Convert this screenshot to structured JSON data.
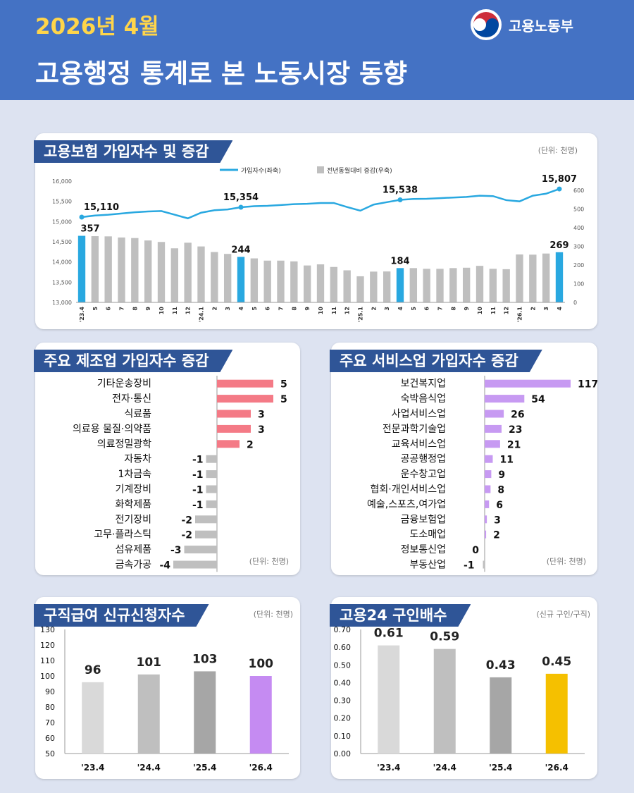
{
  "header": {
    "date": "2026년 4월",
    "title": "고용행정 통계로 본 노동시장 동향",
    "ministry": "고용노동부"
  },
  "colors": {
    "header_bg": "#4472c4",
    "accent_line": "#29a8e0",
    "bar_gray": "#bfbfbf",
    "manufacturing_pos": "#f47a86",
    "service_pos": "#c79af2",
    "highlight_purple": "#c58bf2",
    "highlight_yellow": "#f5c000"
  },
  "insurance_panel": {
    "title": "고용보험 가입자수 및 증감",
    "unit": "(단위: 천명)"
  },
  "manufacturing_panel": {
    "title": "주요 제조업 가입자수 증감",
    "unit": "(단위: 천명)"
  },
  "service_panel": {
    "title": "주요 서비스업 가입자수 증감",
    "unit": "(단위: 천명)"
  },
  "jobseeker_panel": {
    "title": "구직급여 신규신청자수",
    "unit": "(단위: 천명)"
  },
  "openings_panel": {
    "title": "고용24 구인배수",
    "unit": "(신규 구인/구직)"
  },
  "chart_data": [
    {
      "type": "line",
      "title": "고용보험 가입자수 및 증감",
      "categories": [
        "'23.4",
        "5",
        "6",
        "7",
        "8",
        "9",
        "10",
        "11",
        "12",
        "'24.1",
        "2",
        "3",
        "4",
        "5",
        "6",
        "7",
        "8",
        "9",
        "10",
        "11",
        "12",
        "'25.1",
        "2",
        "3",
        "4",
        "5",
        "6",
        "7",
        "8",
        "9",
        "10",
        "11",
        "12",
        "'26.1",
        "2",
        "3",
        "4"
      ],
      "series": [
        {
          "name": "가입자수(좌축)",
          "type": "line",
          "axis": "left",
          "values": [
            15110,
            15150,
            15170,
            15200,
            15230,
            15250,
            15260,
            15170,
            15080,
            15220,
            15280,
            15300,
            15354,
            15380,
            15390,
            15410,
            15430,
            15440,
            15460,
            15460,
            15360,
            15270,
            15420,
            15480,
            15538,
            15560,
            15565,
            15580,
            15595,
            15610,
            15640,
            15630,
            15530,
            15500,
            15640,
            15690,
            15807
          ],
          "labels": {
            "0": "15,110",
            "12": "15,354",
            "24": "15,538",
            "36": "15,807"
          }
        },
        {
          "name": "전년동월대비 증감(우축)",
          "type": "bar",
          "axis": "right",
          "values": [
            357,
            355,
            354,
            348,
            345,
            332,
            324,
            290,
            320,
            300,
            270,
            260,
            244,
            236,
            224,
            224,
            220,
            198,
            204,
            190,
            172,
            140,
            165,
            166,
            184,
            184,
            180,
            180,
            184,
            186,
            196,
            180,
            178,
            257,
            256,
            262,
            269
          ],
          "labels": {
            "0": "357",
            "12": "244",
            "24": "184",
            "36": "269"
          },
          "highlight": [
            0,
            12,
            24,
            36
          ]
        }
      ],
      "y_left": {
        "min": 13000,
        "max": 16000,
        "ticks": [
          "13,000",
          "13,500",
          "14,000",
          "14,500",
          "15,000",
          "15,500",
          "16,000"
        ]
      },
      "y_right": {
        "min": 0,
        "max": 650,
        "ticks": [
          "0",
          "100",
          "200",
          "300",
          "400",
          "500",
          "600"
        ]
      },
      "legend_position": "top"
    },
    {
      "type": "bar",
      "orientation": "horizontal",
      "title": "주요 제조업 가입자수 증감",
      "categories": [
        "기타운송장비",
        "전자·통신",
        "식료품",
        "의료용 물질·의약품",
        "의료정밀광학",
        "자동차",
        "1차금속",
        "기계장비",
        "화학제품",
        "전기장비",
        "고무·플라스틱",
        "섬유제품",
        "금속가공"
      ],
      "values": [
        5,
        5,
        3,
        3,
        2,
        -1,
        -1,
        -1,
        -1,
        -2,
        -2,
        -3,
        -4
      ],
      "labels": [
        "5",
        "5",
        "3",
        "3",
        "2",
        "-1",
        "-1",
        "-1",
        "-1",
        "-2",
        "-2",
        "-3",
        "-4"
      ]
    },
    {
      "type": "bar",
      "orientation": "horizontal",
      "title": "주요 서비스업 가입자수 증감",
      "categories": [
        "보건복지업",
        "숙박음식업",
        "사업서비스업",
        "전문과학기술업",
        "교육서비스업",
        "공공행정업",
        "운수창고업",
        "협회·개인서비스업",
        "예술,스포츠,여가업",
        "금융보험업",
        "도소매업",
        "정보통신업",
        "부동산업"
      ],
      "values": [
        117,
        54,
        26,
        23,
        21,
        11,
        9,
        8,
        6,
        3,
        2,
        0,
        -1
      ],
      "labels": [
        "117",
        "54",
        "26",
        "23",
        "21",
        "11",
        "9",
        "8",
        "6",
        "3",
        "2",
        "0",
        "-1"
      ]
    },
    {
      "type": "bar",
      "title": "구직급여 신규신청자수",
      "categories": [
        "'23.4",
        "'24.4",
        "'25.4",
        "'26.4"
      ],
      "values": [
        96,
        101,
        103,
        100
      ],
      "labels": [
        "96",
        "101",
        "103",
        "100"
      ],
      "ylim": [
        50,
        130
      ],
      "y_ticks": [
        "50",
        "60",
        "70",
        "80",
        "90",
        "100",
        "110",
        "120",
        "130"
      ]
    },
    {
      "type": "bar",
      "title": "고용24 구인배수",
      "categories": [
        "'23.4",
        "'24.4",
        "'25.4",
        "'26.4"
      ],
      "values": [
        0.61,
        0.59,
        0.43,
        0.45
      ],
      "labels": [
        "0.61",
        "0.59",
        "0.43",
        "0.45"
      ],
      "ylim": [
        0,
        0.7
      ],
      "y_ticks": [
        "0.00",
        "0.10",
        "0.20",
        "0.30",
        "0.40",
        "0.50",
        "0.60",
        "0.70"
      ]
    }
  ]
}
